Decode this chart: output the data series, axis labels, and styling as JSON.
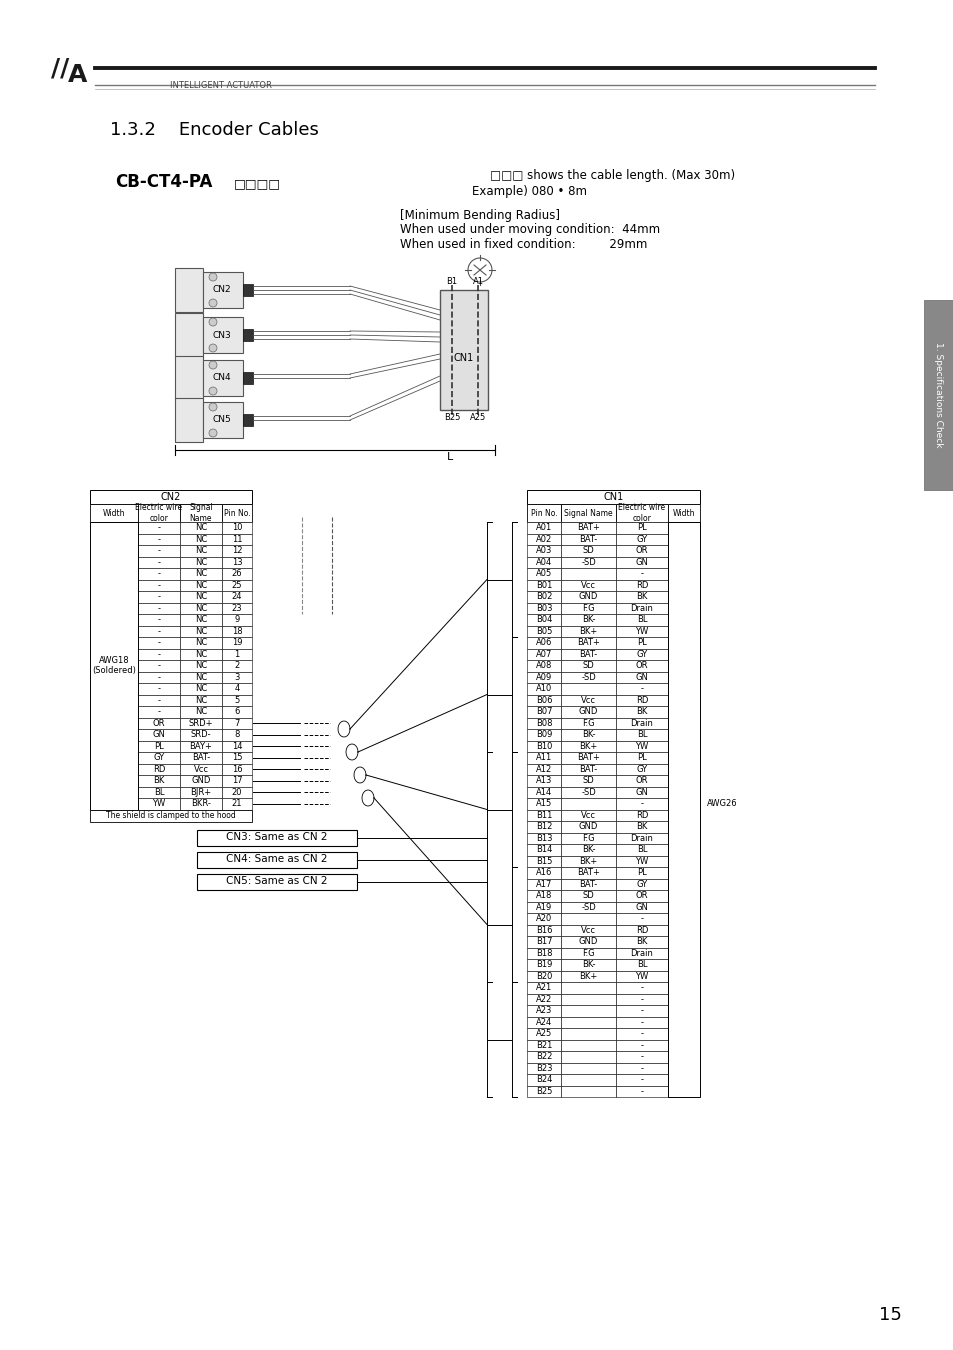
{
  "title_section": "1.3.2    Encoder Cables",
  "model_name": "CB-CT4-PA□□□□",
  "cable_note_1": "□□□ shows the cable length. (Max 30m)",
  "cable_note_2": "Example) 080 • 8m",
  "bending_line1": "[Minimum Bending Radius]",
  "bending_line2": "When used under moving condition:  44mm",
  "bending_line3": "When used in fixed condition:         29mm",
  "cn2_header": "CN2",
  "cn1_header": "CN1",
  "cn2_col_headers": [
    "Width",
    "Electric wire\ncolor",
    "Signal\nName",
    "Pin No."
  ],
  "cn2_rows": [
    [
      "-",
      "NC",
      "10"
    ],
    [
      "-",
      "NC",
      "11"
    ],
    [
      "-",
      "NC",
      "12"
    ],
    [
      "-",
      "NC",
      "13"
    ],
    [
      "-",
      "NC",
      "26"
    ],
    [
      "-",
      "NC",
      "25"
    ],
    [
      "-",
      "NC",
      "24"
    ],
    [
      "-",
      "NC",
      "23"
    ],
    [
      "-",
      "NC",
      "9"
    ],
    [
      "-",
      "NC",
      "18"
    ],
    [
      "-",
      "NC",
      "19"
    ],
    [
      "-",
      "NC",
      "1"
    ],
    [
      "-",
      "NC",
      "2"
    ],
    [
      "-",
      "NC",
      "3"
    ],
    [
      "-",
      "NC",
      "4"
    ],
    [
      "-",
      "NC",
      "5"
    ],
    [
      "-",
      "NC",
      "6"
    ],
    [
      "OR",
      "SRD+",
      "7"
    ],
    [
      "GN",
      "SRD-",
      "8"
    ],
    [
      "PL",
      "BAY+",
      "14"
    ],
    [
      "GY",
      "BAT-",
      "15"
    ],
    [
      "RD",
      "Vcc",
      "16"
    ],
    [
      "BK",
      "GND",
      "17"
    ],
    [
      "BL",
      "BJR+",
      "20"
    ],
    [
      "YW",
      "BKR-",
      "21"
    ]
  ],
  "cn2_shield_note": "The shield is clamped to the hood",
  "cn1_col_headers": [
    "Pin No.",
    "Signal Name",
    "Electric wire\ncolor",
    "Width"
  ],
  "cn1_rows": [
    [
      "A01",
      "BAT+",
      "PL"
    ],
    [
      "A02",
      "BAT-",
      "GY"
    ],
    [
      "A03",
      "SD",
      "OR"
    ],
    [
      "A04",
      "-SD",
      "GN"
    ],
    [
      "A05",
      "",
      "-"
    ],
    [
      "B01",
      "Vcc",
      "RD"
    ],
    [
      "B02",
      "GND",
      "BK"
    ],
    [
      "B03",
      "F.G",
      "Drain"
    ],
    [
      "B04",
      "BK-",
      "BL"
    ],
    [
      "B05",
      "BK+",
      "YW"
    ],
    [
      "A06",
      "BAT+",
      "PL"
    ],
    [
      "A07",
      "BAT-",
      "GY"
    ],
    [
      "A08",
      "SD",
      "OR"
    ],
    [
      "A09",
      "-SD",
      "GN"
    ],
    [
      "A10",
      "",
      "-"
    ],
    [
      "B06",
      "Vcc",
      "RD"
    ],
    [
      "B07",
      "GND",
      "BK"
    ],
    [
      "B08",
      "F.G",
      "Drain"
    ],
    [
      "B09",
      "BK-",
      "BL"
    ],
    [
      "B10",
      "BK+",
      "YW"
    ],
    [
      "A11",
      "BAT+",
      "PL"
    ],
    [
      "A12",
      "BAT-",
      "GY"
    ],
    [
      "A13",
      "SD",
      "OR"
    ],
    [
      "A14",
      "-SD",
      "GN"
    ],
    [
      "A15",
      "",
      "-"
    ],
    [
      "B11",
      "Vcc",
      "RD"
    ],
    [
      "B12",
      "GND",
      "BK"
    ],
    [
      "B13",
      "F.G",
      "Drain"
    ],
    [
      "B14",
      "BK-",
      "BL"
    ],
    [
      "B15",
      "BK+",
      "YW"
    ],
    [
      "A16",
      "BAT+",
      "PL"
    ],
    [
      "A17",
      "BAT-",
      "GY"
    ],
    [
      "A18",
      "SD",
      "OR"
    ],
    [
      "A19",
      "-SD",
      "GN"
    ],
    [
      "A20",
      "",
      "-"
    ],
    [
      "B16",
      "Vcc",
      "RD"
    ],
    [
      "B17",
      "GND",
      "BK"
    ],
    [
      "B18",
      "F.G",
      "Drain"
    ],
    [
      "B19",
      "BK-",
      "BL"
    ],
    [
      "B20",
      "BK+",
      "YW"
    ],
    [
      "A21",
      "",
      "-"
    ],
    [
      "A22",
      "",
      "-"
    ],
    [
      "A23",
      "",
      "-"
    ],
    [
      "A24",
      "",
      "-"
    ],
    [
      "A25",
      "",
      "-"
    ],
    [
      "B21",
      "",
      "-"
    ],
    [
      "B22",
      "",
      "-"
    ],
    [
      "B23",
      "",
      "-"
    ],
    [
      "B24",
      "",
      "-"
    ],
    [
      "B25",
      "",
      "-"
    ]
  ],
  "awg26_row": 24,
  "cn3_note": "CN3: Same as CN 2",
  "cn4_note": "CN4: Same as CN 2",
  "cn5_note": "CN5: Same as CN 2",
  "page_number": "15",
  "side_tab": "1. Specifications Check",
  "bg_color": "#ffffff"
}
